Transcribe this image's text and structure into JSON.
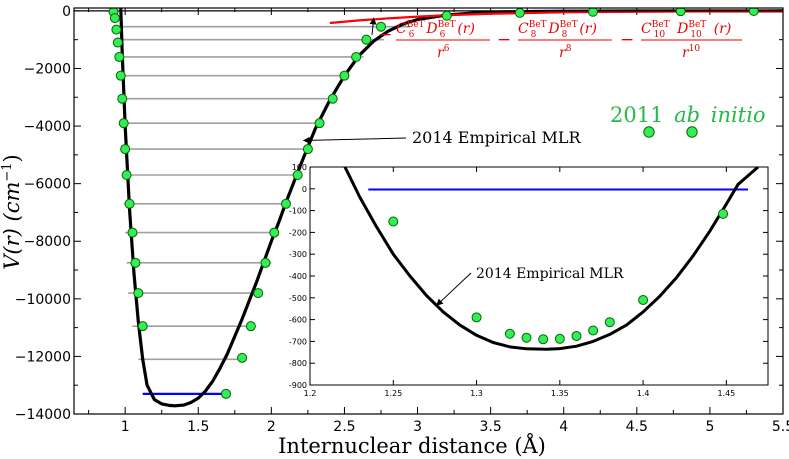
{
  "chart_data": [
    {
      "type": "line",
      "name": "main",
      "title": "",
      "xlabel": "Internuclear distance (Å)",
      "ylabel_main": "V(r) (cm",
      "ylabel_sup": "−1",
      "ylabel_close": ")",
      "xlim": [
        0.65,
        5.5
      ],
      "ylim": [
        -14000,
        100
      ],
      "xticks": [
        1,
        1.5,
        2,
        2.5,
        3,
        3.5,
        4,
        4.5,
        5,
        5.5
      ],
      "xtick_labels": [
        "1",
        "1.5",
        "2",
        "2.5",
        "3",
        "3.5",
        "4",
        "4.5",
        "5",
        "5.5"
      ],
      "yticks": [
        0,
        -2000,
        -4000,
        -6000,
        -8000,
        -10000,
        -12000,
        -14000
      ],
      "ytick_labels": [
        "0",
        "−2000",
        "−4000",
        "−6000",
        "−8000",
        "−10000",
        "−12000",
        "−14000"
      ],
      "colors": {
        "potential": "#000000",
        "longrange": "#ff0000",
        "levels": "#a0a0a0",
        "ground_level": "#0000ff",
        "points_fill": "#33ee55",
        "points_edge": "#006600",
        "label_green": "#22bb44"
      },
      "series": [
        {
          "name": "2014 Empirical MLR",
          "style": "curve",
          "x": [
            0.97,
            0.98,
            1.0,
            1.03,
            1.06,
            1.09,
            1.12,
            1.15,
            1.2,
            1.25,
            1.3,
            1.34,
            1.4,
            1.45,
            1.5,
            1.55,
            1.6,
            1.65,
            1.7,
            1.75,
            1.8,
            1.85,
            1.9,
            1.95,
            2.0,
            2.05,
            2.1,
            2.15,
            2.2,
            2.3,
            2.4,
            2.5,
            2.6,
            2.7,
            2.8,
            2.9,
            3.0,
            3.2,
            3.4,
            3.6,
            3.8,
            4.0,
            4.5,
            5.0,
            5.5
          ],
          "y": [
            100,
            -1500,
            -4000,
            -6900,
            -9100,
            -10800,
            -12100,
            -13000,
            -13500,
            -13650,
            -13700,
            -13715,
            -13690,
            -13600,
            -13450,
            -13200,
            -12850,
            -12400,
            -11900,
            -11300,
            -10700,
            -10050,
            -9400,
            -8700,
            -8000,
            -7350,
            -6650,
            -6000,
            -5350,
            -4100,
            -3100,
            -2250,
            -1550,
            -1050,
            -700,
            -460,
            -300,
            -140,
            -70,
            -35,
            -20,
            -12,
            -4,
            -2,
            -1
          ]
        },
        {
          "name": "long-range dispersion",
          "style": "curve",
          "x": [
            2.4,
            2.6,
            2.8,
            3.0,
            3.2,
            3.5,
            4.0,
            4.5,
            5.0,
            5.5
          ],
          "y": [
            -420,
            -330,
            -260,
            -200,
            -150,
            -100,
            -50,
            -26,
            -14,
            -8
          ]
        },
        {
          "name": "2011 ab initio",
          "style": "points",
          "x": [
            0.92,
            0.93,
            0.94,
            0.95,
            0.96,
            0.97,
            0.98,
            0.99,
            1.0,
            1.01,
            1.03,
            1.05,
            1.07,
            1.09,
            1.12,
            1.69,
            1.8,
            1.86,
            1.91,
            1.96,
            2.02,
            2.1,
            2.18,
            2.25,
            2.33,
            2.42,
            2.5,
            2.58,
            2.65,
            2.75,
            3.2,
            3.7,
            4.2,
            4.8,
            5.3
          ],
          "y": [
            -30,
            -250,
            -650,
            -1100,
            -1600,
            -2250,
            -3050,
            -3900,
            -4800,
            -5700,
            -6700,
            -7700,
            -8750,
            -9800,
            -10950,
            -13300,
            -12050,
            -10950,
            -9800,
            -8750,
            -7700,
            -6700,
            -5700,
            -4800,
            -3900,
            -3050,
            -2250,
            -1600,
            -1000,
            -550,
            -170,
            -70,
            -30,
            -10,
            -5
          ]
        }
      ],
      "levels": [
        {
          "y": -13300,
          "x1": 1.12,
          "x2": 1.69
        },
        {
          "y": -12100,
          "x1": 1.09,
          "x2": 1.81
        },
        {
          "y": -10950,
          "x1": 1.05,
          "x2": 1.88
        },
        {
          "y": -9800,
          "x1": 1.02,
          "x2": 1.94
        },
        {
          "y": -8750,
          "x1": 1.01,
          "x2": 2.0
        },
        {
          "y": -7700,
          "x1": 1.0,
          "x2": 2.05
        },
        {
          "y": -6700,
          "x1": 0.99,
          "x2": 2.12
        },
        {
          "y": -5700,
          "x1": 0.98,
          "x2": 2.19
        },
        {
          "y": -4800,
          "x1": 0.97,
          "x2": 2.27
        },
        {
          "y": -3900,
          "x1": 0.96,
          "x2": 2.35
        },
        {
          "y": -3050,
          "x1": 0.95,
          "x2": 2.43
        },
        {
          "y": -2250,
          "x1": 0.95,
          "x2": 2.53
        },
        {
          "y": -1600,
          "x1": 0.94,
          "x2": 2.63
        },
        {
          "y": -1000,
          "x1": 0.93,
          "x2": 2.77
        },
        {
          "y": -550,
          "x1": 0.93,
          "x2": 2.95
        }
      ],
      "ground_level": {
        "y": -13300,
        "x1": 1.12,
        "x2": 1.69
      },
      "annotations": {
        "mlr_label": "2014 Empirical MLR",
        "mlr_arrow_target": {
          "x": 2.22,
          "y": -4500
        },
        "abinitio_year": "2011",
        "abinitio_words": [
          "ab",
          "initio"
        ],
        "formula": {
          "pre": "−",
          "terms": [
            {
              "C": "C",
              "csub": "6",
              "csup": "BeT",
              "D": "D",
              "dsub": "6",
              "dsup": "BeT",
              "arg": "(r)",
              "r": "r",
              "rpow": "6"
            },
            {
              "C": "C",
              "csub": "8",
              "csup": "BeT",
              "D": "D",
              "dsub": "8",
              "dsup": "BeT",
              "arg": "(r)",
              "r": "r",
              "rpow": "8"
            },
            {
              "C": "C",
              "csub": "10",
              "csup": "BeT",
              "D": "D",
              "dsub": "10",
              "dsup": "BeT",
              "arg": "(r)",
              "r": "r",
              "rpow": "10"
            }
          ],
          "minus": "−",
          "arrow_target": {
            "x": 2.7,
            "y": -250
          }
        }
      }
    },
    {
      "type": "line",
      "name": "inset",
      "xlim": [
        1.2,
        1.475
      ],
      "ylim": [
        -900,
        100
      ],
      "xticks": [
        1.2,
        1.25,
        1.3,
        1.35,
        1.4,
        1.45
      ],
      "xtick_labels": [
        "1.2",
        "1.25",
        "1.3",
        "1.35",
        "1.4",
        "1.45"
      ],
      "yticks": [
        100,
        0,
        -100,
        -200,
        -300,
        -400,
        -500,
        -600,
        -700,
        -800,
        -900
      ],
      "ytick_labels": [
        "100",
        "0",
        "-100",
        "-200",
        "-300",
        "-400",
        "-500",
        "-600",
        "-700",
        "-800",
        "-900"
      ],
      "series": [
        {
          "name": "2014 Empirical MLR",
          "style": "curve",
          "x": [
            1.221,
            1.23,
            1.24,
            1.25,
            1.26,
            1.27,
            1.28,
            1.29,
            1.3,
            1.31,
            1.32,
            1.33,
            1.342,
            1.35,
            1.36,
            1.37,
            1.38,
            1.39,
            1.4,
            1.41,
            1.42,
            1.43,
            1.44,
            1.45,
            1.457,
            1.463,
            1.469
          ],
          "y": [
            100,
            -40,
            -175,
            -300,
            -400,
            -490,
            -565,
            -625,
            -672,
            -705,
            -725,
            -734,
            -736,
            -733,
            -722,
            -700,
            -668,
            -625,
            -565,
            -493,
            -408,
            -308,
            -195,
            -70,
            20,
            60,
            100
          ]
        },
        {
          "name": "2011 ab initio",
          "style": "points",
          "x": [
            1.25,
            1.3,
            1.32,
            1.33,
            1.34,
            1.35,
            1.36,
            1.37,
            1.38,
            1.4,
            1.448
          ],
          "y": [
            -150,
            -590,
            -665,
            -683,
            -690,
            -688,
            -675,
            -650,
            -612,
            -510,
            -115
          ]
        }
      ],
      "level": {
        "y": -3,
        "x1": 1.235,
        "x2": 1.463
      },
      "annotations": {
        "mlr_label": "2014 Empirical MLR",
        "arrow_target": {
          "x": 1.276,
          "y": -535
        }
      }
    }
  ]
}
